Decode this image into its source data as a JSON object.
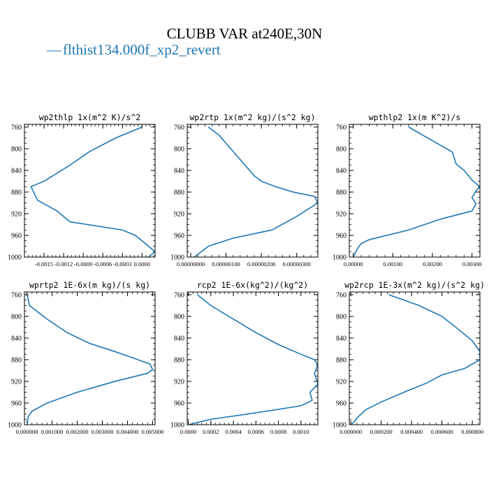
{
  "figure": {
    "title": "CLUBB VAR at240E,30N",
    "legend_label": "flthist134.000f_xp2_revert",
    "legend_dash": "—"
  },
  "colors": {
    "series": "#1f77b4",
    "axis": "#000000",
    "text": "#000000"
  },
  "chart_data": [
    {
      "type": "line",
      "title": "wp2thlp  1x(m^2 K)/s^2",
      "series": [
        {
          "x": [
            -0.0,
            -0.0004,
            -0.0008,
            -0.0011,
            -0.0013,
            -0.0015,
            -0.0017,
            -0.0016,
            -0.0013,
            -0.0011,
            -0.0003,
            -0.0001,
            0.0,
            0.0001,
            0.0002,
            0.0001
          ],
          "y": [
            760,
            780,
            805,
            830,
            845,
            860,
            870,
            895,
            915,
            935,
            950,
            960,
            970,
            980,
            990,
            1000
          ]
        }
      ],
      "xlim": [
        -0.0018,
        0.0002
      ],
      "xticks": [
        -0.0015,
        -0.0012,
        -0.0009,
        -0.0006,
        -0.0003,
        0.0
      ],
      "xticklabels": [
        "-0.0015",
        "-0.0012",
        "-0.0009",
        "-0.0006",
        "-0.0003",
        "0.0000"
      ],
      "ylim": [
        1000,
        755
      ],
      "yticks": [
        760,
        800,
        840,
        880,
        920,
        960,
        1000
      ],
      "yticklabels": [
        "760",
        "800",
        "840",
        "880",
        "920",
        "960",
        "1000"
      ]
    },
    {
      "type": "line",
      "title": "wp2rtp  1x(m^2 kg)/(s^2 kg)",
      "series": [
        {
          "x": [
            5e-07,
            8e-07,
            1e-06,
            1.2e-06,
            1.4e-06,
            1.6e-06,
            1.8e-06,
            2e-06,
            2.4e-06,
            2.9e-06,
            3.5e-06,
            3.6e-06,
            3e-06,
            2.3e-06,
            1.2e-06,
            5e-07,
            3e-07,
            2e-07,
            1e-07
          ],
          "y": [
            760,
            775,
            790,
            805,
            820,
            835,
            850,
            860,
            870,
            880,
            888,
            900,
            925,
            950,
            965,
            980,
            990,
            995,
            1000
          ]
        }
      ],
      "xlim": [
        -1e-07,
        3.6e-06
      ],
      "xticks": [
        0.0,
        1e-06,
        2e-06,
        3e-06
      ],
      "xticklabels": [
        "0.00000000",
        "0.00000100",
        "0.00000200",
        "0.00000300"
      ],
      "ylim": [
        1000,
        755
      ],
      "yticks": [
        760,
        800,
        840,
        880,
        920,
        960,
        1000
      ],
      "yticklabels": [
        "760",
        "800",
        "840",
        "880",
        "920",
        "960",
        "1000"
      ]
    },
    {
      "type": "line",
      "title": "wpthlp2  1x(m K^2)/s",
      "series": [
        {
          "x": [
            0.0014,
            0.002,
            0.0025,
            0.0026,
            0.0028,
            0.003,
            0.0032,
            0.0031,
            0.003,
            0.0031,
            0.003,
            0.0022,
            0.0014,
            0.0004,
            0.0002,
            0.0001,
            0.0
          ],
          "y": [
            760,
            785,
            806,
            828,
            840,
            858,
            870,
            878,
            890,
            902,
            915,
            930,
            950,
            968,
            975,
            985,
            1000
          ]
        }
      ],
      "xlim": [
        -0.0001,
        0.0032
      ],
      "xticks": [
        0.0,
        0.001,
        0.002,
        0.003
      ],
      "xticklabels": [
        "0.00000",
        "0.00100",
        "0.00200",
        "0.00300"
      ],
      "ylim": [
        1000,
        755
      ],
      "yticks": [
        760,
        800,
        840,
        880,
        920,
        960,
        1000
      ],
      "yticklabels": [
        "760",
        "800",
        "840",
        "880",
        "920",
        "960",
        "1000"
      ]
    },
    {
      "type": "line",
      "title": "wprtp2  1E-6x(m kg)/(s kg)",
      "series": [
        {
          "x": [
            1e-05,
            0.0001,
            0.0008,
            0.0016,
            0.0025,
            0.0035,
            0.0043,
            0.0049,
            0.005,
            0.0048,
            0.0035,
            0.002,
            0.0008,
            0.0002,
            5e-05,
            0.0
          ],
          "y": [
            760,
            780,
            805,
            830,
            850,
            865,
            878,
            888,
            898,
            905,
            920,
            940,
            960,
            975,
            985,
            1000
          ]
        }
      ],
      "xlim": [
        -0.0001,
        0.0051
      ],
      "xticks": [
        0.0,
        0.001,
        0.002,
        0.003,
        0.004,
        0.005
      ],
      "xticklabels": [
        "0.000000",
        "0.001000",
        "0.002000",
        "0.003000",
        "0.004000",
        "0.005000"
      ],
      "ylim": [
        1000,
        755
      ],
      "yticks": [
        760,
        800,
        840,
        880,
        920,
        960,
        1000
      ],
      "yticklabels": [
        "760",
        "800",
        "840",
        "880",
        "920",
        "960",
        "1000"
      ]
    },
    {
      "type": "line",
      "title": "rcp2  1E-6x(kg^2)/(kg^2)",
      "series": [
        {
          "x": [
            8e-05,
            0.0002,
            0.0004,
            0.0006,
            0.0008,
            0.001,
            0.00112,
            0.00115,
            0.00112,
            0.00115,
            0.00108,
            0.0011,
            0.001,
            0.0006,
            0.0002,
            0.0001,
            0.0
          ],
          "y": [
            760,
            780,
            805,
            830,
            852,
            870,
            880,
            890,
            905,
            925,
            940,
            955,
            965,
            978,
            990,
            995,
            1000
          ]
        }
      ],
      "xlim": [
        -1e-05,
        0.00115
      ],
      "xticks": [
        0.0,
        0.0002,
        0.0004,
        0.0006,
        0.0008,
        0.001
      ],
      "xticklabels": [
        "0.0000",
        "0.0002",
        "0.0004",
        "0.0006",
        "0.0008",
        "0.0010"
      ],
      "ylim": [
        1000,
        755
      ],
      "yticks": [
        760,
        800,
        840,
        880,
        920,
        960,
        1000
      ],
      "yticklabels": [
        "760",
        "800",
        "840",
        "880",
        "920",
        "960",
        "1000"
      ]
    },
    {
      "type": "line",
      "title": "wp2rcp  1E-3x(m^2 kg)/(s^2 kg)",
      "series": [
        {
          "x": [
            0.00025,
            0.00045,
            0.0006,
            0.0007,
            0.0008,
            0.00085,
            0.00085,
            0.00075,
            0.0006,
            0.0005,
            0.00035,
            0.0002,
            0.0001,
            5e-05,
            2e-05,
            0.0
          ],
          "y": [
            760,
            780,
            800,
            822,
            845,
            865,
            880,
            896,
            908,
            923,
            940,
            958,
            972,
            985,
            995,
            1000
          ]
        }
      ],
      "xlim": [
        -1e-05,
        0.00085
      ],
      "xticks": [
        0.0,
        0.0002,
        0.0004,
        0.0006,
        0.0008
      ],
      "xticklabels": [
        "0.000000",
        "0.000200",
        "0.000400",
        "0.000600",
        "0.000800"
      ],
      "ylim": [
        1000,
        755
      ],
      "yticks": [
        760,
        800,
        840,
        880,
        920,
        960,
        1000
      ],
      "yticklabels": [
        "760",
        "800",
        "840",
        "880",
        "920",
        "960",
        "1000"
      ]
    }
  ]
}
